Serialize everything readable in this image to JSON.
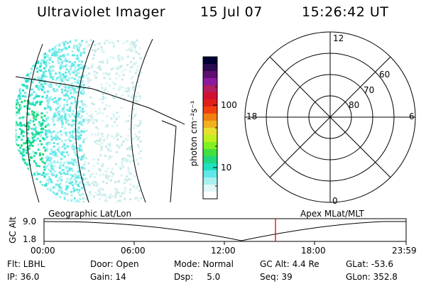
{
  "header": {
    "instrument": "Ultraviolet Imager",
    "date": "15 Jul 07",
    "time": "15:26:42 UT"
  },
  "colorbar": {
    "label": "photon cm⁻²s⁻¹",
    "ticks": [
      "100",
      "10"
    ],
    "colors": [
      "#000033",
      "#2b0a4d",
      "#5c0f6e",
      "#8a1a9e",
      "#b02060",
      "#d01030",
      "#e02018",
      "#f04010",
      "#f08010",
      "#f0b020",
      "#e8e030",
      "#c0f020",
      "#80f020",
      "#40e040",
      "#20d880",
      "#20e0c0",
      "#60e8e8",
      "#a8f0f0",
      "#e0f8f8",
      "#ffffff"
    ]
  },
  "polar": {
    "mlt_labels": {
      "top": "12",
      "left": "18",
      "right": "6",
      "bottom": "0"
    },
    "lat_labels": [
      "60",
      "70",
      "80"
    ]
  },
  "timeline": {
    "left_label": "Geographic Lat/Lon",
    "right_label": "Apex MLat/MLT",
    "y_axis_label": "GC Alt",
    "y_ticks": [
      "9.0",
      "1.8"
    ],
    "x_ticks": [
      "00:00",
      "06:00",
      "12:00",
      "18:00",
      "23:59"
    ],
    "marker_color": "#e00000"
  },
  "status": {
    "filter": "Flt: LBHL",
    "ip": "IP: 36.0",
    "door": "Door: Open",
    "gain": "Gain: 14",
    "mode": "Mode: Normal",
    "dsp": "Dsp:     5.0",
    "gc_alt": "GC Alt: 4.4 Re",
    "seq": "Seq: 39",
    "glat": "GLat: -53.6",
    "glon": "GLon: 352.8"
  }
}
